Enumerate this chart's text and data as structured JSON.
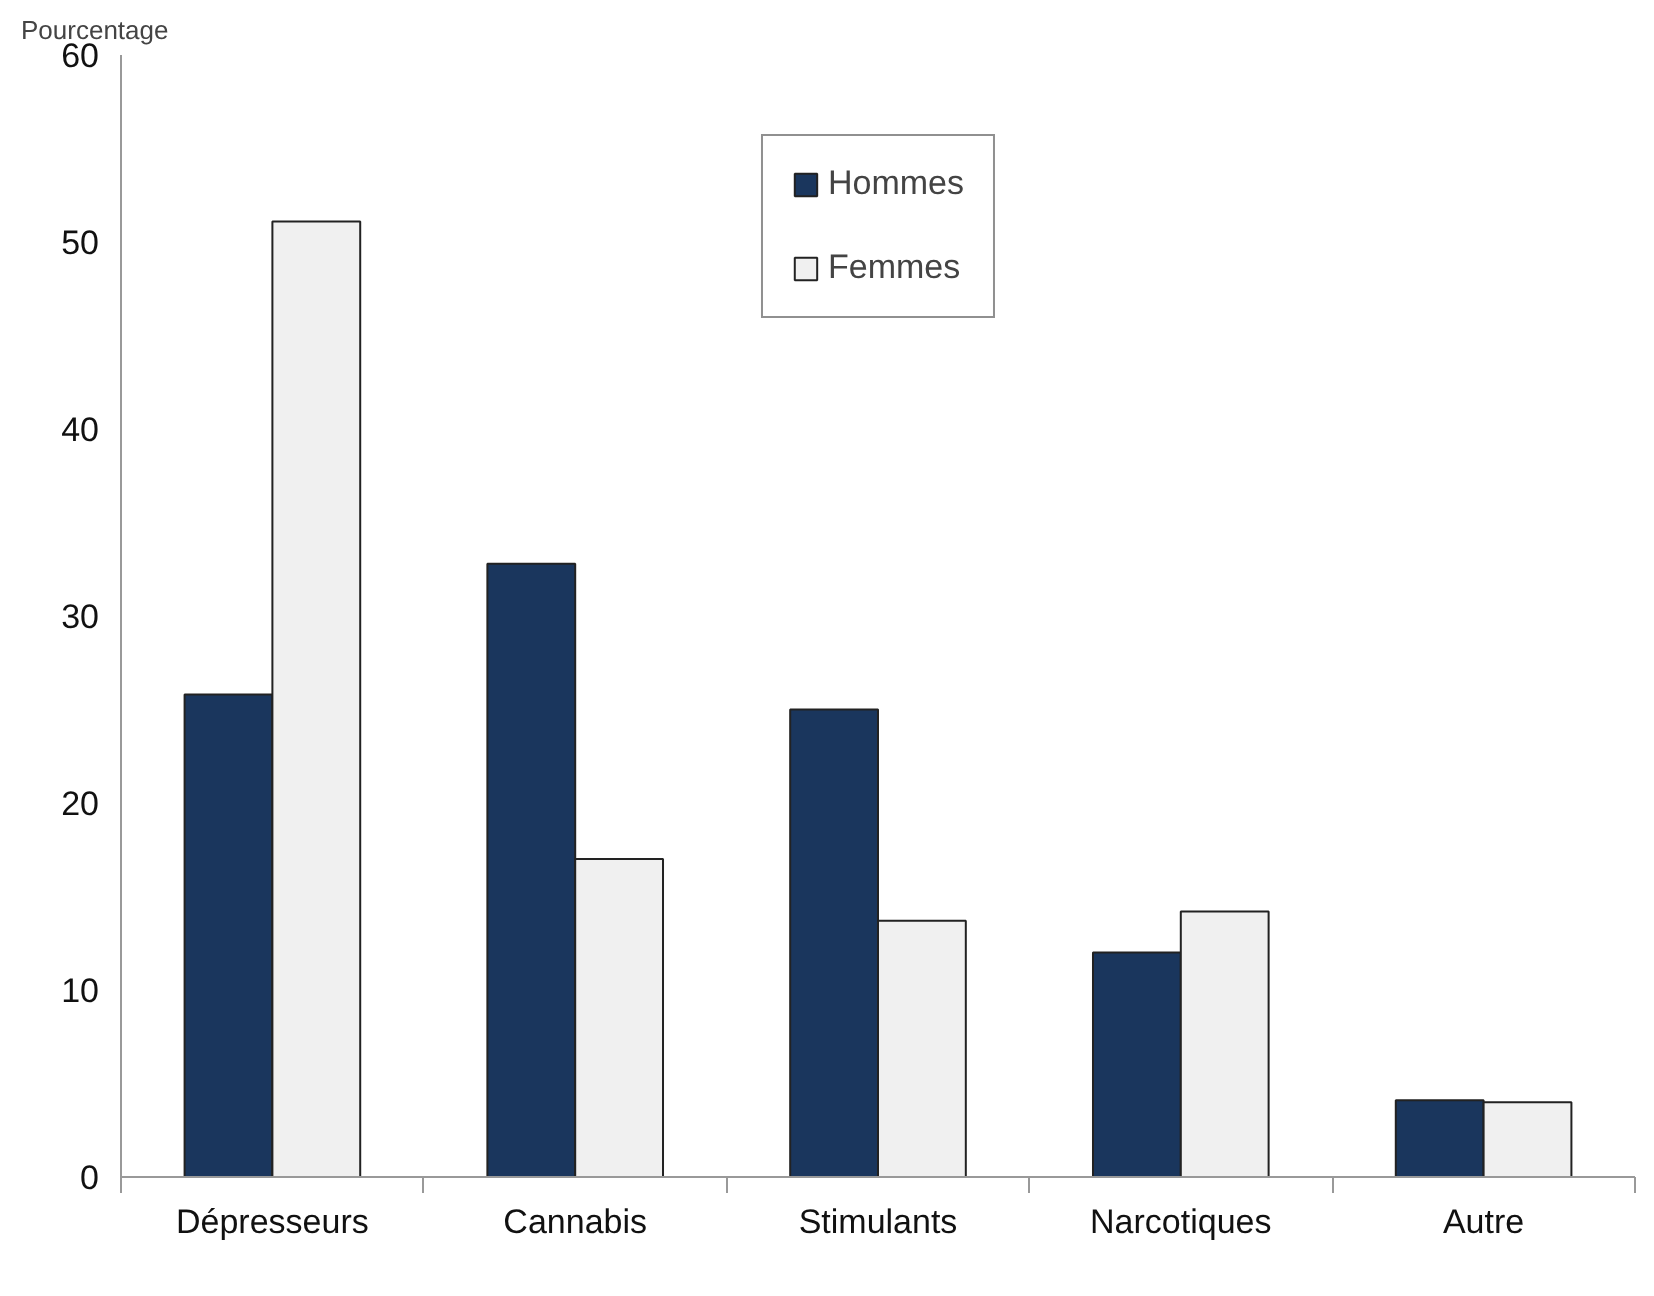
{
  "chart_data": {
    "type": "bar",
    "ylabel": "Pourcentage",
    "categories": [
      "Dépresseurs",
      "Cannabis",
      "Stimulants",
      "Narcotiques",
      "Autre"
    ],
    "series": [
      {
        "name": "Hommes",
        "color": "#1a365d",
        "values": [
          25.8,
          32.8,
          25.0,
          12.0,
          4.1
        ]
      },
      {
        "name": "Femmes",
        "color": "#f0f0f0",
        "values": [
          51.1,
          17.0,
          13.7,
          14.2,
          4.0
        ]
      }
    ],
    "ylim": [
      0,
      60
    ],
    "yticks": [
      0,
      10,
      20,
      30,
      40,
      50,
      60
    ],
    "grid": false,
    "legend": "top"
  }
}
